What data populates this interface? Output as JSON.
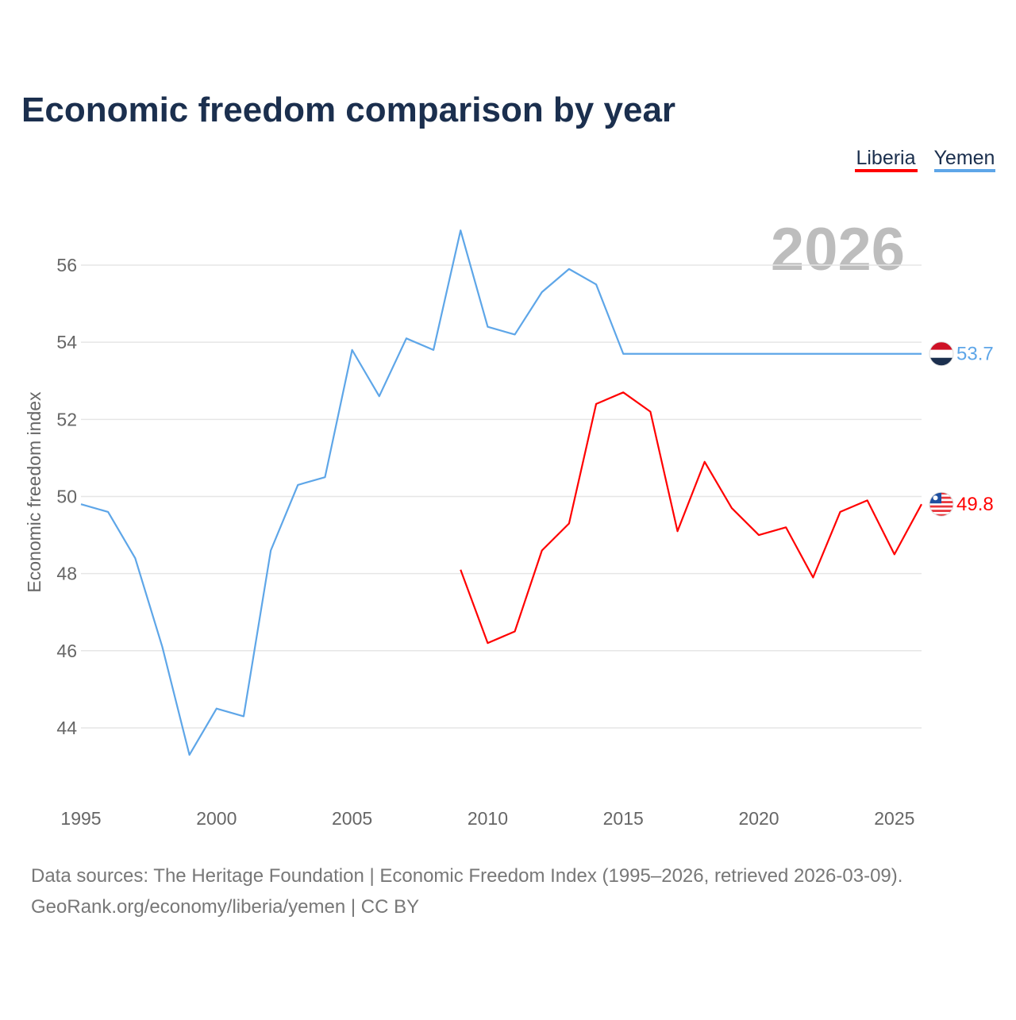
{
  "chart_data": {
    "type": "line",
    "title": "Economic freedom comparison by year",
    "ylabel": "Economic freedom index",
    "xlabel": "",
    "year_watermark": "2026",
    "ylim": [
      42.1,
      58
    ],
    "xlim": [
      1995,
      2026
    ],
    "y_ticks": [
      "44",
      "46",
      "48",
      "50",
      "52",
      "54",
      "56"
    ],
    "x_ticks": [
      "1995",
      "2000",
      "2005",
      "2010",
      "2015",
      "2020",
      "2025"
    ],
    "grid": true,
    "legend_position": "top-right",
    "series": [
      {
        "name": "Liberia",
        "color": "#ff0000",
        "end_label": "49.8",
        "x": [
          2009,
          2010,
          2011,
          2012,
          2013,
          2014,
          2015,
          2016,
          2017,
          2018,
          2019,
          2020,
          2021,
          2022,
          2023,
          2024,
          2025,
          2026
        ],
        "values": [
          48.1,
          46.2,
          46.5,
          48.6,
          49.3,
          52.4,
          52.7,
          52.2,
          49.1,
          50.9,
          49.7,
          49.0,
          49.2,
          47.9,
          49.6,
          49.9,
          48.5,
          49.8
        ]
      },
      {
        "name": "Yemen",
        "color": "#5ea6e8",
        "end_label": "53.7",
        "x": [
          1995,
          1996,
          1997,
          1998,
          1999,
          2000,
          2001,
          2002,
          2003,
          2004,
          2005,
          2006,
          2007,
          2008,
          2009,
          2010,
          2011,
          2012,
          2013,
          2014,
          2015,
          2016,
          2017,
          2018,
          2019,
          2020,
          2021,
          2022,
          2023,
          2024,
          2025,
          2026
        ],
        "values": [
          49.8,
          49.6,
          48.4,
          46.1,
          43.3,
          44.5,
          44.3,
          48.6,
          50.3,
          50.5,
          53.8,
          52.6,
          54.1,
          53.8,
          56.9,
          54.4,
          54.2,
          55.3,
          55.9,
          55.5,
          53.7,
          53.7,
          53.7,
          53.7,
          53.7,
          53.7,
          53.7,
          53.7,
          53.7,
          53.7,
          53.7,
          53.7
        ]
      }
    ]
  },
  "footer": {
    "source": "Data sources: The Heritage Foundation | Economic Freedom Index (1995–2026, retrieved 2026-03-09).",
    "credit": "GeoRank.org/economy/liberia/yemen | CC BY"
  }
}
